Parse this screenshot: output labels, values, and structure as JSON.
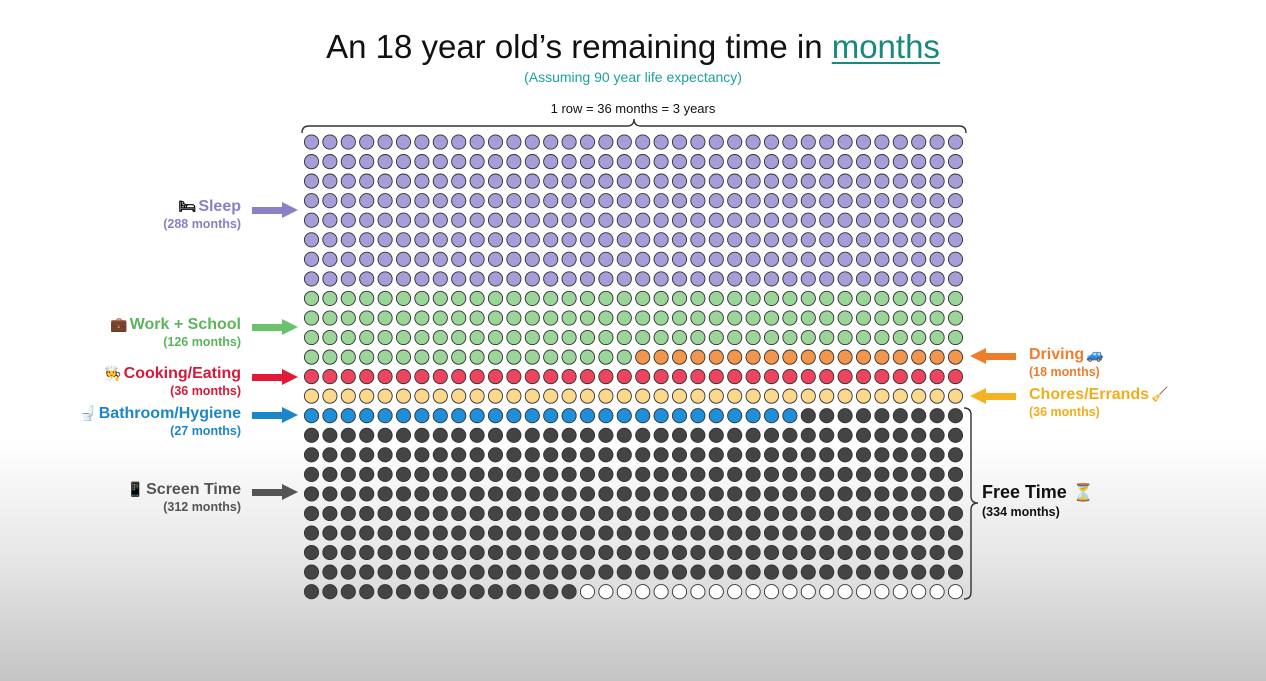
{
  "title": {
    "prefix": "An 18 year old’s remaining time in ",
    "highlight": "months"
  },
  "subtitle": "(Assuming 90 year life expectancy)",
  "row_note": "1 row = 36 months = 3 years",
  "grid": {
    "columns": 36,
    "rows": 24,
    "segments": [
      {
        "key": "sleep",
        "count": 288,
        "color": "#a59ed9"
      },
      {
        "key": "work",
        "count": 126,
        "color": "#9bd59a"
      },
      {
        "key": "driving",
        "count": 18,
        "color": "#f3964d"
      },
      {
        "key": "cooking",
        "count": 36,
        "color": "#ee4460"
      },
      {
        "key": "chores",
        "count": 36,
        "color": "#fcd88c"
      },
      {
        "key": "bathroom",
        "count": 27,
        "color": "#1e8fd8"
      },
      {
        "key": "screen",
        "count": 312,
        "color": "#444444"
      },
      {
        "key": "empty",
        "count": 21,
        "color": "#ffffff"
      }
    ]
  },
  "labels": {
    "sleep": {
      "name": "Sleep",
      "sub": "(288 months)",
      "icon": "bed-icon",
      "glyph": "🛏",
      "color": "#8a80c6"
    },
    "work": {
      "name": "Work + School",
      "sub": "(126 months)",
      "icon": "briefcase-icon",
      "glyph": "💼",
      "color": "#5cb55c"
    },
    "cooking": {
      "name": "Cooking/Eating",
      "sub": "(36 months)",
      "icon": "chef-icon",
      "glyph": "🧑‍🍳",
      "color": "#d6193a"
    },
    "bathroom": {
      "name": "Bathroom/Hygiene",
      "sub": "(27 months)",
      "icon": "toilet-icon",
      "glyph": "🚽",
      "color": "#1d86c9"
    },
    "screen": {
      "name": "Screen Time",
      "sub": "(312 months)",
      "icon": "phone-icon",
      "glyph": "📱",
      "color": "#555555"
    },
    "driving": {
      "name": "Driving",
      "sub": "(18 months)",
      "icon": "car-icon",
      "glyph": "🚙",
      "color": "#f07d2c"
    },
    "chores": {
      "name": "Chores/Errands",
      "sub": "(36 months)",
      "icon": "broom-icon",
      "glyph": "🧹",
      "color": "#f2ad1c"
    },
    "free": {
      "name": "Free Time",
      "sub": "(334 months)",
      "icon": "hourglass-icon",
      "glyph": "⏳",
      "color": "#111111"
    }
  }
}
